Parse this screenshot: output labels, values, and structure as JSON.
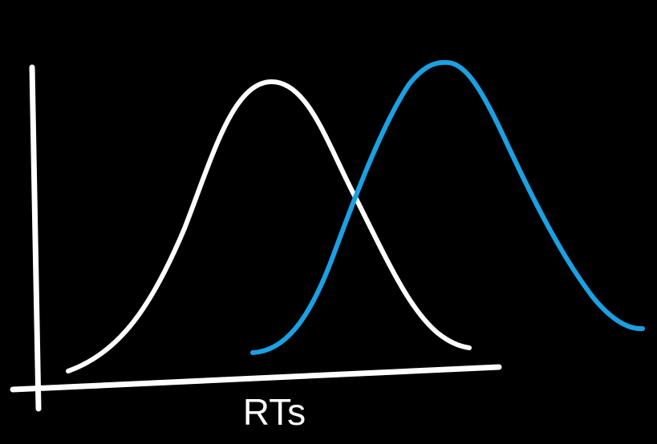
{
  "diagram": {
    "x_axis_label": "RTs",
    "curves": [
      {
        "name": "white-distribution-curve",
        "color": "#ffffff",
        "shape": "bell"
      },
      {
        "name": "blue-distribution-curve",
        "color": "#1ba1e2",
        "shape": "bell"
      }
    ],
    "background_color": "#000000",
    "axis_color": "#ffffff"
  }
}
